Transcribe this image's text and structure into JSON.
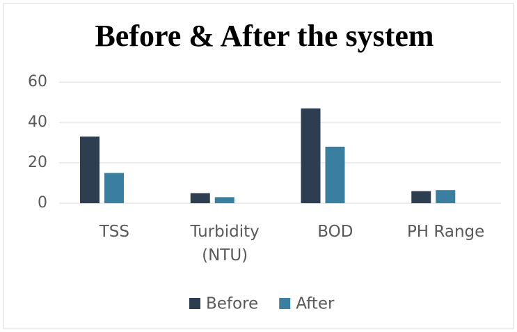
{
  "chart_data": {
    "type": "bar",
    "title": "Before & After the system",
    "categories": [
      "TSS",
      "Turbidity (NTU)",
      "BOD",
      "PH Range"
    ],
    "series": [
      {
        "name": "Before",
        "color": "#2c3e50",
        "values": [
          33,
          5,
          47,
          6
        ]
      },
      {
        "name": "After",
        "color": "#3a7fa0",
        "values": [
          15,
          3,
          28,
          6.5
        ]
      }
    ],
    "ylim": [
      0,
      60
    ],
    "yticks": [
      0,
      20,
      40,
      60
    ],
    "grid": true,
    "legend": "bottom"
  }
}
